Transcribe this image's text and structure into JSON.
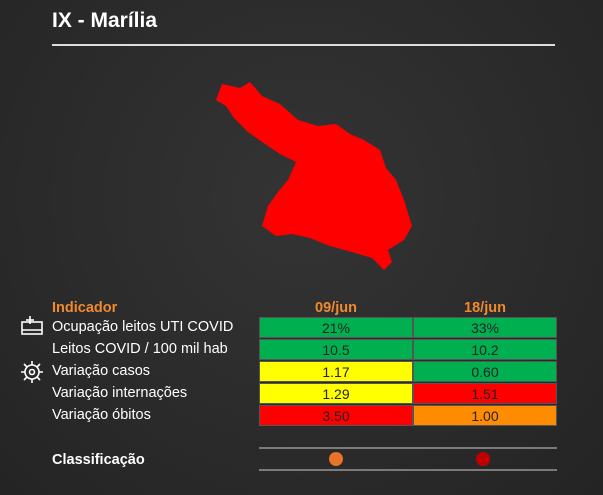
{
  "title": "IX - Marília",
  "map": {
    "color": "#ff0000"
  },
  "table": {
    "header": {
      "label": "Indicador",
      "columns": [
        "09/jun",
        "18/jun"
      ]
    },
    "rows": [
      {
        "label": "Ocupação leitos UTI COVID",
        "cells": [
          {
            "text": "21%",
            "color": "#00b050"
          },
          {
            "text": "33%",
            "color": "#00b050"
          }
        ]
      },
      {
        "label": "Leitos COVID / 100 mil hab",
        "cells": [
          {
            "text": "10.5",
            "color": "#00b050"
          },
          {
            "text": "10.2",
            "color": "#00b050"
          }
        ]
      },
      {
        "label": "Variação casos",
        "cells": [
          {
            "text": "1.17",
            "color": "#ffff00"
          },
          {
            "text": "0.60",
            "color": "#00b050"
          }
        ]
      },
      {
        "label": "Variação internações",
        "cells": [
          {
            "text": "1.29",
            "color": "#ffff00"
          },
          {
            "text": "1.51",
            "color": "#ff0000"
          }
        ]
      },
      {
        "label": "Variação óbitos",
        "cells": [
          {
            "text": "3.50",
            "color": "#ff0000"
          },
          {
            "text": "1.00",
            "color": "#ff8c00"
          }
        ]
      }
    ],
    "classification": {
      "label": "Classificação",
      "colors": [
        "#e8742a",
        "#c00000"
      ]
    }
  }
}
